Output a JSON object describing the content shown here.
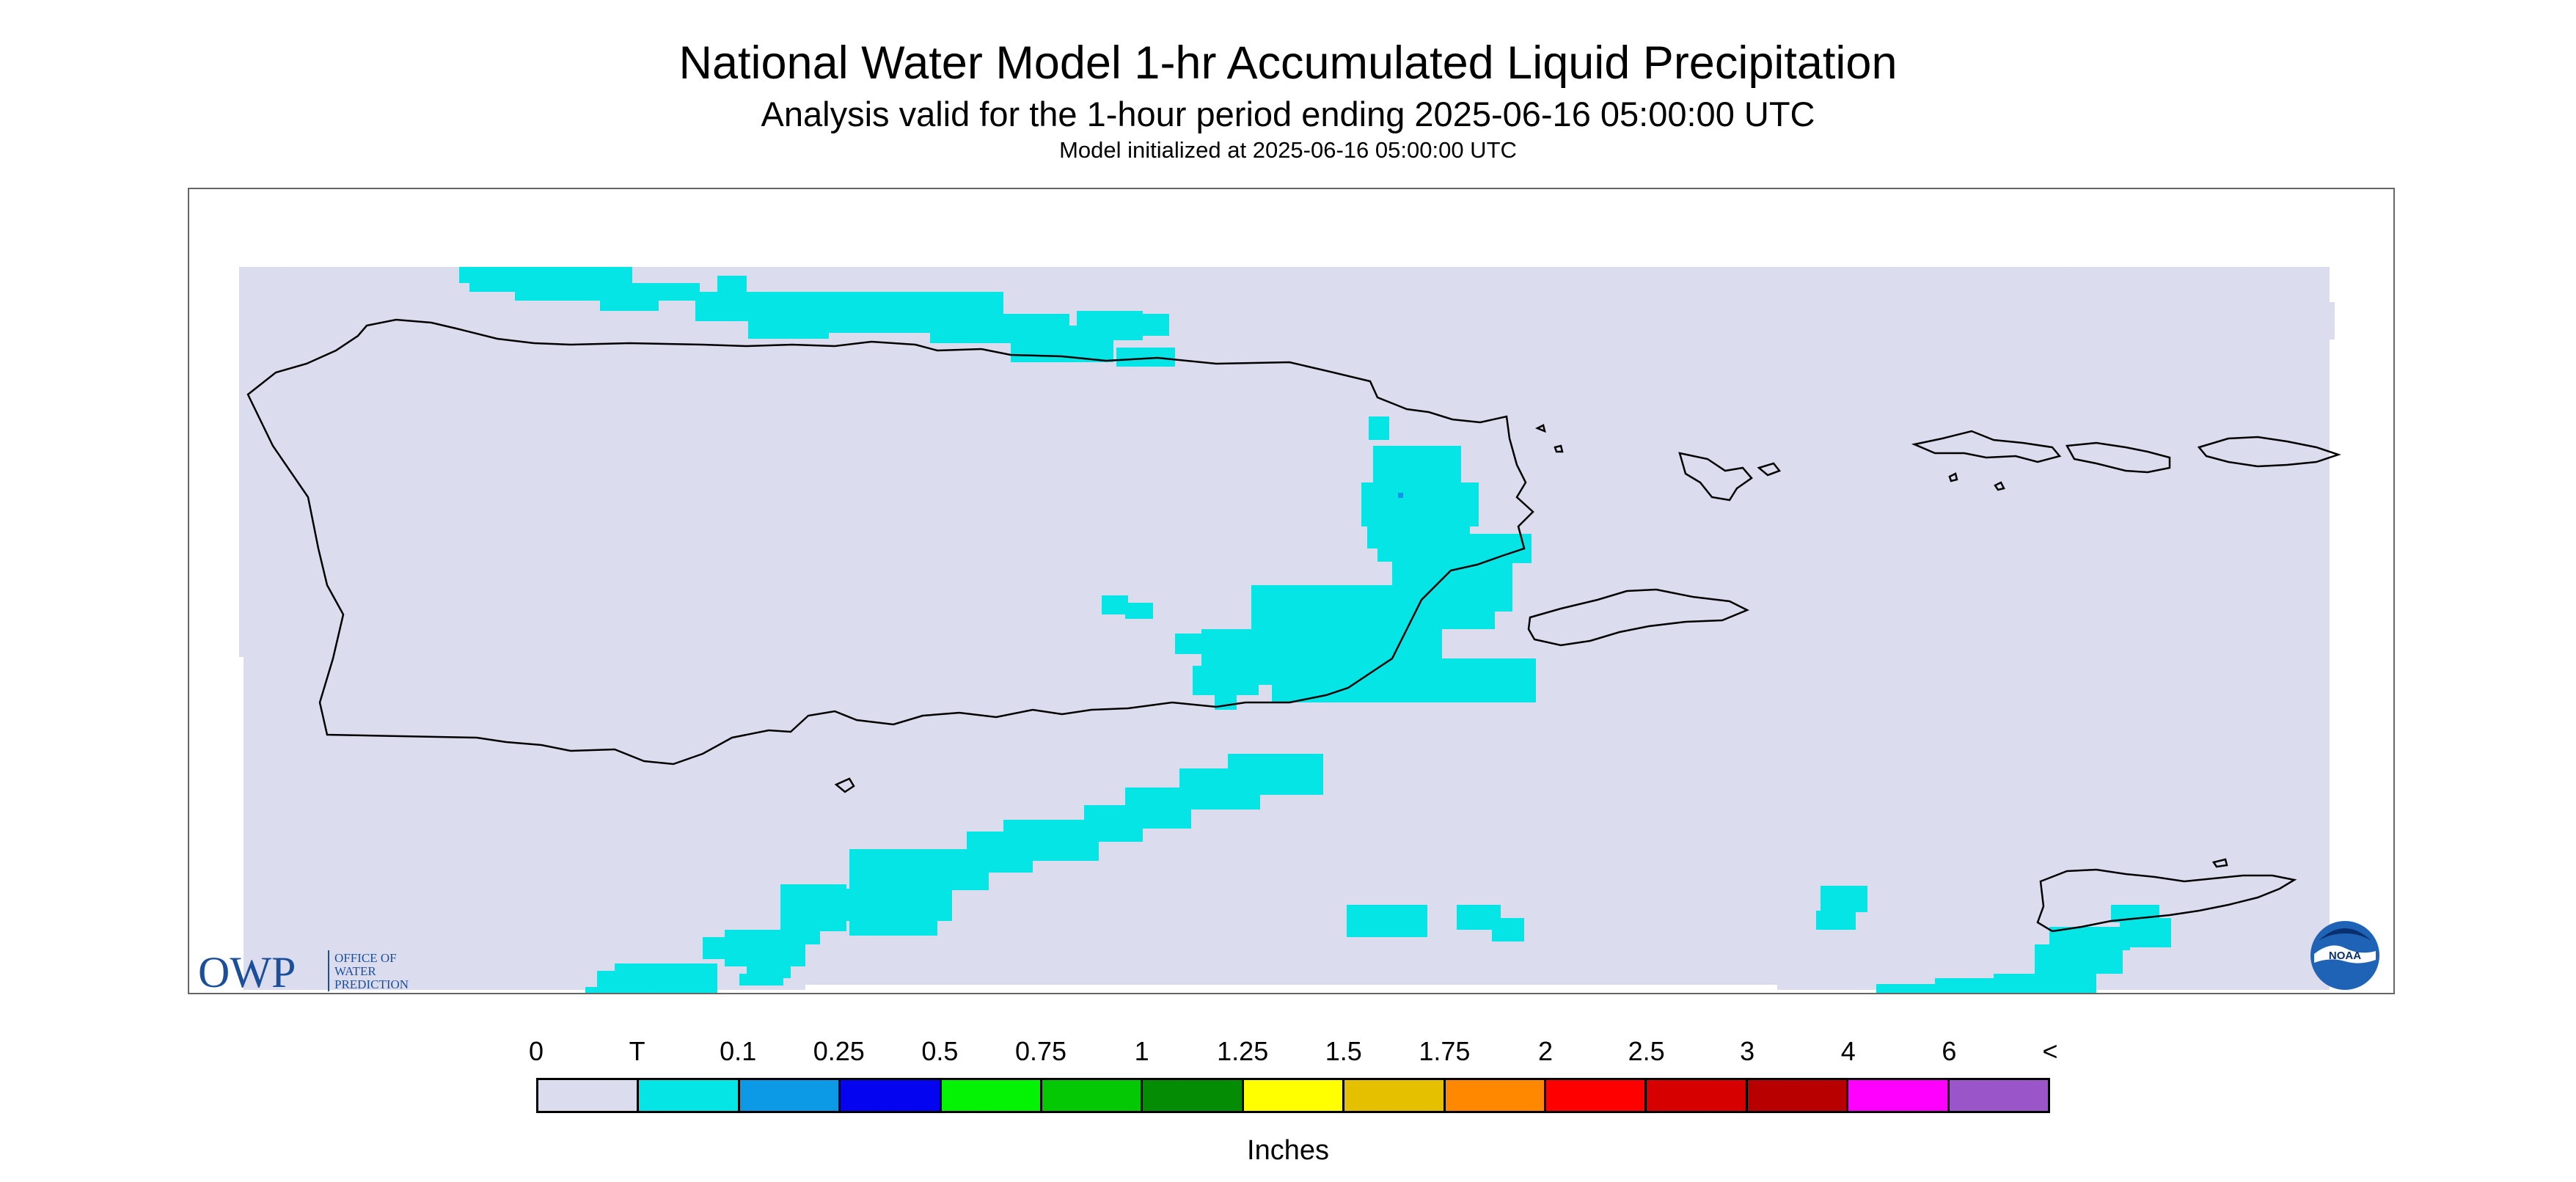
{
  "header": {
    "title": "National Water Model 1-hr Accumulated Liquid Precipitation",
    "subtitle": "Analysis valid for the 1-hour period ending 2025-06-16 05:00:00 UTC",
    "init_line": "Model initialized at 2025-06-16 05:00:00 UTC"
  },
  "map": {
    "region_color": "#dcdcef",
    "precip_color": "#05e5e5",
    "coastline_color": "#000000"
  },
  "owp_logo": {
    "letters": "OWP",
    "line1": "OFFICE OF",
    "line2": "WATER",
    "line3": "PREDICTION",
    "color": "#1b4f9c"
  },
  "noaa_logo": {
    "text": "NOAA",
    "color": "#1f63b6"
  },
  "legend": {
    "ticks": [
      "0",
      "T",
      "0.1",
      "0.25",
      "0.5",
      "0.75",
      "1",
      "1.25",
      "1.5",
      "1.75",
      "2",
      "2.5",
      "3",
      "4",
      "6",
      "<"
    ],
    "colors": [
      "#dcdcef",
      "#05e5e5",
      "#0c9ae6",
      "#0404f0",
      "#04f204",
      "#04c804",
      "#048c04",
      "#ffff00",
      "#e5c000",
      "#ff8800",
      "#ff0000",
      "#d60000",
      "#b80000",
      "#ff00ff",
      "#9a55c8"
    ],
    "label": "Inches"
  }
}
